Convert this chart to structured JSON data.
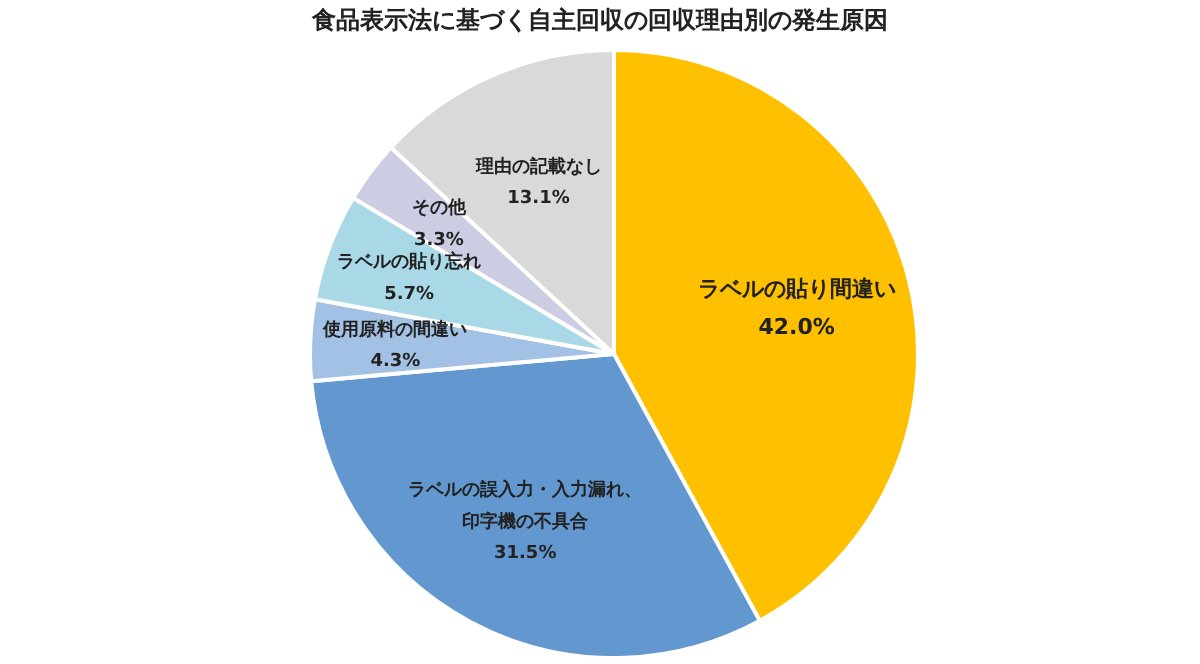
{
  "chart_data": {
    "type": "pie",
    "title": "食品表示法に基づく自主回収の回収理由別の発生原因",
    "categories": [
      "ラベルの貼り間違い",
      "ラベルの誤入力・入力漏れ、印字機の不具合",
      "使用原料の間違い",
      "ラベルの貼り忘れ",
      "その他",
      "理由の記載なし"
    ],
    "values": [
      42.0,
      31.5,
      4.3,
      5.7,
      3.3,
      13.1
    ],
    "value_labels": [
      "42.0%",
      "31.5%",
      "4.3%",
      "5.7%",
      "3.3%",
      "13.1%"
    ],
    "colors": [
      "#ffc000",
      "#6298cf",
      "#a2c1e4",
      "#a9d8e6",
      "#cccce3",
      "#d9d9d9"
    ],
    "legend": false
  }
}
